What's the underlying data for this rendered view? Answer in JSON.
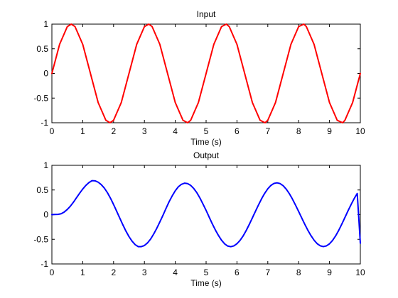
{
  "chart_data": [
    {
      "type": "line",
      "title": "Input",
      "xlabel": "Time (s)",
      "ylabel": "",
      "xlim": [
        0,
        10
      ],
      "ylim": [
        -1,
        1
      ],
      "xticks": [
        0,
        1,
        2,
        3,
        4,
        5,
        6,
        7,
        8,
        9,
        10
      ],
      "yticks": [
        -1,
        -0.5,
        0,
        0.5,
        1
      ],
      "xtick_labels": [
        "0",
        "1",
        "2",
        "3",
        "4",
        "5",
        "6",
        "7",
        "8",
        "9",
        "10"
      ],
      "ytick_labels": [
        "-1",
        "-0.5",
        "0",
        "0.5",
        "1"
      ],
      "grid": false,
      "series": [
        {
          "color": "#ff0000",
          "x": [
            0,
            0.25,
            0.5,
            0.628,
            0.75,
            1.0,
            1.25,
            1.5,
            1.75,
            1.885,
            2.0,
            2.25,
            2.5,
            2.75,
            3.0,
            3.142,
            3.25,
            3.5,
            3.75,
            4.0,
            4.25,
            4.398,
            4.5,
            4.75,
            5.0,
            5.25,
            5.5,
            5.655,
            5.75,
            6.0,
            6.25,
            6.5,
            6.75,
            6.912,
            7.0,
            7.25,
            7.5,
            7.75,
            8.0,
            8.168,
            8.25,
            8.5,
            8.75,
            9.0,
            9.25,
            9.425,
            9.5,
            9.75,
            10.0
          ],
          "values": [
            0,
            0.59,
            0.95,
            1.0,
            0.95,
            0.59,
            0.0,
            -0.59,
            -0.95,
            -1.0,
            -0.95,
            -0.59,
            0.0,
            0.59,
            0.95,
            1.0,
            0.95,
            0.59,
            0.0,
            -0.59,
            -0.95,
            -1.0,
            -0.95,
            -0.59,
            0.0,
            0.59,
            0.95,
            1.0,
            0.95,
            0.59,
            0.0,
            -0.59,
            -0.95,
            -1.0,
            -0.95,
            -0.59,
            0.0,
            0.59,
            0.95,
            1.0,
            0.95,
            0.59,
            0.0,
            -0.59,
            -0.95,
            -1.0,
            -0.95,
            -0.59,
            0.0
          ]
        }
      ]
    },
    {
      "type": "line",
      "title": "Output",
      "xlabel": "Time (s)",
      "ylabel": "",
      "xlim": [
        0,
        10
      ],
      "ylim": [
        -1,
        1
      ],
      "xticks": [
        0,
        1,
        2,
        3,
        4,
        5,
        6,
        7,
        8,
        9,
        10
      ],
      "yticks": [
        -1,
        -0.5,
        0,
        0.5,
        1
      ],
      "xtick_labels": [
        "0",
        "1",
        "2",
        "3",
        "4",
        "5",
        "6",
        "7",
        "8",
        "9",
        "10"
      ],
      "ytick_labels": [
        "-1",
        "-0.5",
        "0",
        "0.5",
        "1"
      ],
      "grid": false,
      "series": [
        {
          "color": "#0000ff",
          "x": [
            0,
            0.1,
            0.2,
            0.3,
            0.4,
            0.5,
            0.6,
            0.7,
            0.8,
            0.9,
            1.0,
            1.1,
            1.2,
            1.3,
            1.4,
            1.5,
            1.6,
            1.7,
            1.8,
            1.9,
            2.0,
            2.1,
            2.2,
            2.3,
            2.4,
            2.5,
            2.6,
            2.7,
            2.8,
            2.9,
            3.0,
            3.1,
            3.2,
            3.3,
            3.4,
            3.5,
            3.6,
            3.7,
            3.8,
            3.9,
            4.0,
            4.1,
            4.2,
            4.3,
            4.4,
            4.5,
            4.6,
            4.7,
            4.8,
            4.9,
            5.0,
            5.1,
            5.2,
            5.3,
            5.4,
            5.5,
            5.6,
            5.7,
            5.8,
            5.9,
            6.0,
            6.1,
            6.2,
            6.3,
            6.4,
            6.5,
            6.6,
            6.7,
            6.8,
            6.9,
            7.0,
            7.1,
            7.2,
            7.3,
            7.4,
            7.5,
            7.6,
            7.7,
            7.8,
            7.9,
            8.0,
            8.1,
            8.2,
            8.3,
            8.4,
            8.5,
            8.6,
            8.7,
            8.8,
            8.9,
            9.0,
            9.1,
            9.2,
            9.3,
            9.4,
            9.5,
            9.6,
            9.7,
            9.8,
            9.9,
            10.0
          ],
          "values": [
            0.0,
            0.004,
            0.005,
            0.018,
            0.053,
            0.105,
            0.172,
            0.253,
            0.344,
            0.434,
            0.519,
            0.592,
            0.649,
            0.689,
            0.686,
            0.658,
            0.609,
            0.539,
            0.446,
            0.333,
            0.205,
            0.069,
            -0.069,
            -0.205,
            -0.333,
            -0.446,
            -0.539,
            -0.609,
            -0.649,
            -0.649,
            -0.626,
            -0.573,
            -0.496,
            -0.394,
            -0.278,
            -0.148,
            -0.016,
            0.126,
            0.262,
            0.379,
            0.484,
            0.565,
            0.615,
            0.638,
            0.629,
            0.593,
            0.529,
            0.445,
            0.337,
            0.213,
            0.086,
            -0.051,
            -0.186,
            -0.311,
            -0.422,
            -0.519,
            -0.592,
            -0.637,
            -0.65,
            -0.634,
            -0.59,
            -0.522,
            -0.433,
            -0.322,
            -0.198,
            -0.066,
            0.067,
            0.198,
            0.323,
            0.433,
            0.524,
            0.592,
            0.633,
            0.645,
            0.629,
            0.585,
            0.515,
            0.424,
            0.314,
            0.191,
            0.063,
            -0.067,
            -0.197,
            -0.318,
            -0.426,
            -0.518,
            -0.588,
            -0.632,
            -0.648,
            -0.634,
            -0.592,
            -0.523,
            -0.43,
            -0.318,
            -0.192,
            -0.059,
            0.076,
            0.204,
            0.325,
            0.429,
            -0.58
          ]
        }
      ]
    }
  ]
}
